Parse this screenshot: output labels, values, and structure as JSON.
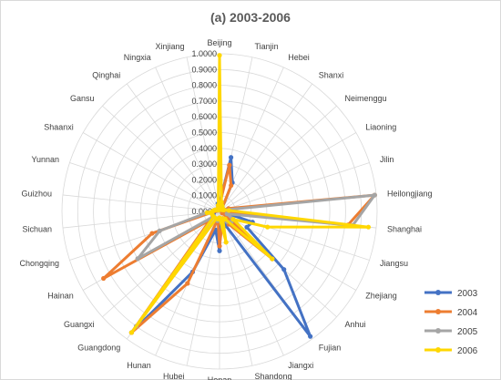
{
  "chart_data": {
    "type": "radar",
    "title": "(a) 2003-2006",
    "categories": [
      "Beijing",
      "Tianjin",
      "Hebei",
      "Shanxi",
      "Neimenggu",
      "Liaoning",
      "Jilin",
      "Heilongjiang",
      "Shanghai",
      "Jiangsu",
      "Zhejiang",
      "Anhui",
      "Fujian",
      "Jiangxi",
      "Shandong",
      "Henan",
      "Hubei",
      "Hunan",
      "Guangdong",
      "Guangxi",
      "Hainan",
      "Chongqing",
      "Sichuan",
      "Guizhou",
      "Yunnan",
      "Shaanxi",
      "Gansu",
      "Qinghai",
      "Ningxia",
      "Xinjiang"
    ],
    "rlim": [
      0,
      1.0
    ],
    "ticks": [
      "0.0000",
      "0.1000",
      "0.2000",
      "0.3000",
      "0.4000",
      "0.5000",
      "0.6000",
      "0.7000",
      "0.8000",
      "0.9000",
      "1.0000"
    ],
    "series": [
      {
        "name": "2003",
        "color": "#4472c4",
        "values": [
          0.05,
          0.35,
          0.2,
          0.03,
          0.02,
          0.02,
          0.02,
          0.03,
          0.02,
          0.22,
          0.2,
          0.55,
          0.98,
          0.1,
          0.05,
          0.25,
          0.12,
          0.42,
          0.95,
          0.05,
          0.05,
          0.04,
          0.05,
          0.03,
          0.02,
          0.02,
          0.02,
          0.01,
          0.02,
          0.05
        ]
      },
      {
        "name": "2004",
        "color": "#ed7d31",
        "values": [
          0.04,
          0.3,
          0.18,
          0.03,
          0.02,
          0.02,
          0.06,
          0.99,
          0.82,
          0.02,
          0.02,
          0.45,
          0.1,
          0.05,
          0.08,
          0.22,
          0.05,
          0.5,
          0.95,
          0.08,
          0.85,
          0.45,
          0.05,
          0.03,
          0.02,
          0.02,
          0.02,
          0.01,
          0.02,
          0.03
        ]
      },
      {
        "name": "2005",
        "color": "#a5a5a5",
        "values": [
          0.05,
          0.05,
          0.04,
          0.03,
          0.02,
          0.02,
          0.03,
          0.99,
          0.85,
          0.05,
          0.1,
          0.1,
          0.08,
          0.05,
          0.1,
          0.05,
          0.06,
          0.05,
          0.9,
          0.05,
          0.6,
          0.4,
          0.08,
          0.04,
          0.03,
          0.02,
          0.02,
          0.01,
          0.02,
          0.04
        ]
      },
      {
        "name": "2006",
        "color": "#ffd700",
        "values": [
          0.99,
          0.06,
          0.04,
          0.03,
          0.02,
          0.02,
          0.03,
          0.06,
          0.95,
          0.32,
          0.1,
          0.45,
          0.06,
          0.05,
          0.2,
          0.04,
          0.05,
          0.05,
          0.95,
          0.05,
          0.05,
          0.05,
          0.08,
          0.04,
          0.03,
          0.02,
          0.02,
          0.01,
          0.02,
          0.04
        ]
      }
    ],
    "legend_position": "right",
    "grid": true
  }
}
